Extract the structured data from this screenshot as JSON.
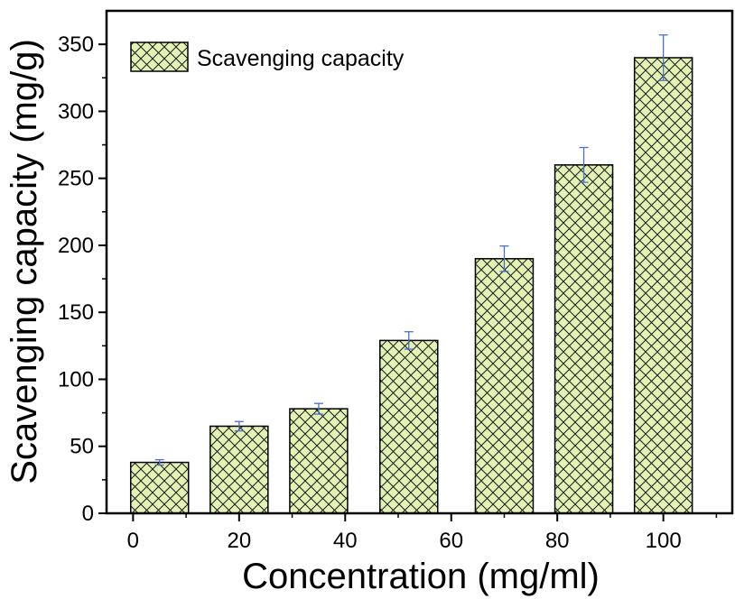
{
  "chart_data": {
    "type": "bar",
    "title": "",
    "xlabel": "Concentration (mg/ml)",
    "ylabel": "Scavenging capacity (mg/g)",
    "x_tick_labels": [
      "0",
      "20",
      "40",
      "60",
      "80",
      "100"
    ],
    "y_ticks": [
      0,
      50,
      100,
      150,
      200,
      250,
      300,
      350
    ],
    "ylim": [
      0,
      375
    ],
    "legend": {
      "label": "Scavenging capacity",
      "position": "top-left"
    },
    "series": [
      {
        "name": "Scavenging capacity",
        "categories": [
          "5",
          "20",
          "35",
          "52",
          "70",
          "85",
          "100"
        ],
        "values": [
          38,
          65,
          78,
          129,
          190,
          260,
          340
        ],
        "errors": [
          2,
          3.5,
          4,
          6.5,
          9.5,
          13,
          17
        ]
      }
    ],
    "colors": {
      "bar_fill": "#e2f3b3",
      "hatch": "#1a1a1a",
      "error_bar": "#4a6fd0",
      "axis": "#000000"
    }
  }
}
